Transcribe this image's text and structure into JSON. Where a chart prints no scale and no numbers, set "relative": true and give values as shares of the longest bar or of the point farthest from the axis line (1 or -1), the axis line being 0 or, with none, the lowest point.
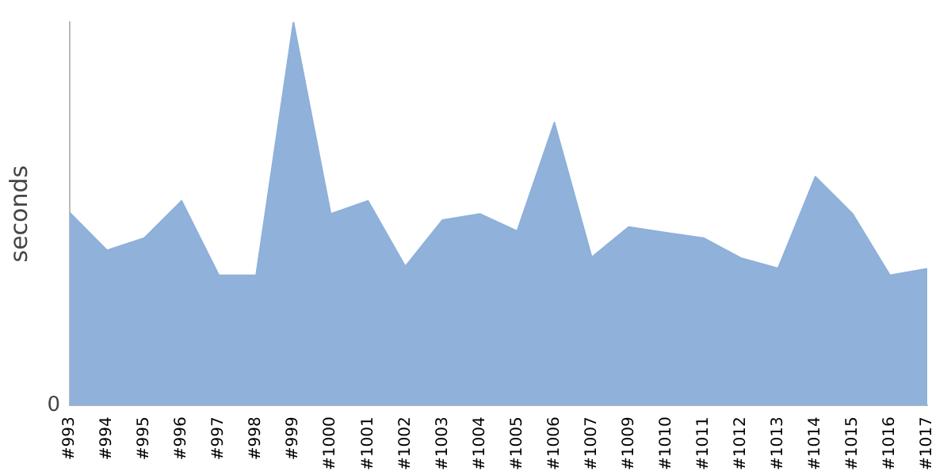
{
  "chart_data": {
    "type": "area",
    "ylabel": "seconds",
    "relative": true,
    "annotations": [
      "0"
    ],
    "categories": [
      "#993",
      "#994",
      "#995",
      "#996",
      "#997",
      "#998",
      "#999",
      "#1000",
      "#1001",
      "#1002",
      "#1003",
      "#1004",
      "#1005",
      "#1006",
      "#1007",
      "#1009",
      "#1010",
      "#1011",
      "#1012",
      "#1013",
      "#1014",
      "#1015",
      "#1016",
      "#1017"
    ],
    "series": [
      {
        "color": "#8fb1da",
        "values": [
          0.503,
          0.405,
          0.437,
          0.534,
          0.34,
          0.34,
          1,
          0.5,
          0.534,
          0.363,
          0.484,
          0.5,
          0.455,
          0.738,
          0.387,
          0.466,
          0.451,
          0.437,
          0.385,
          0.358,
          0.597,
          0.5,
          0.34,
          0.357
        ]
      }
    ],
    "grid": false,
    "legend": false
  }
}
